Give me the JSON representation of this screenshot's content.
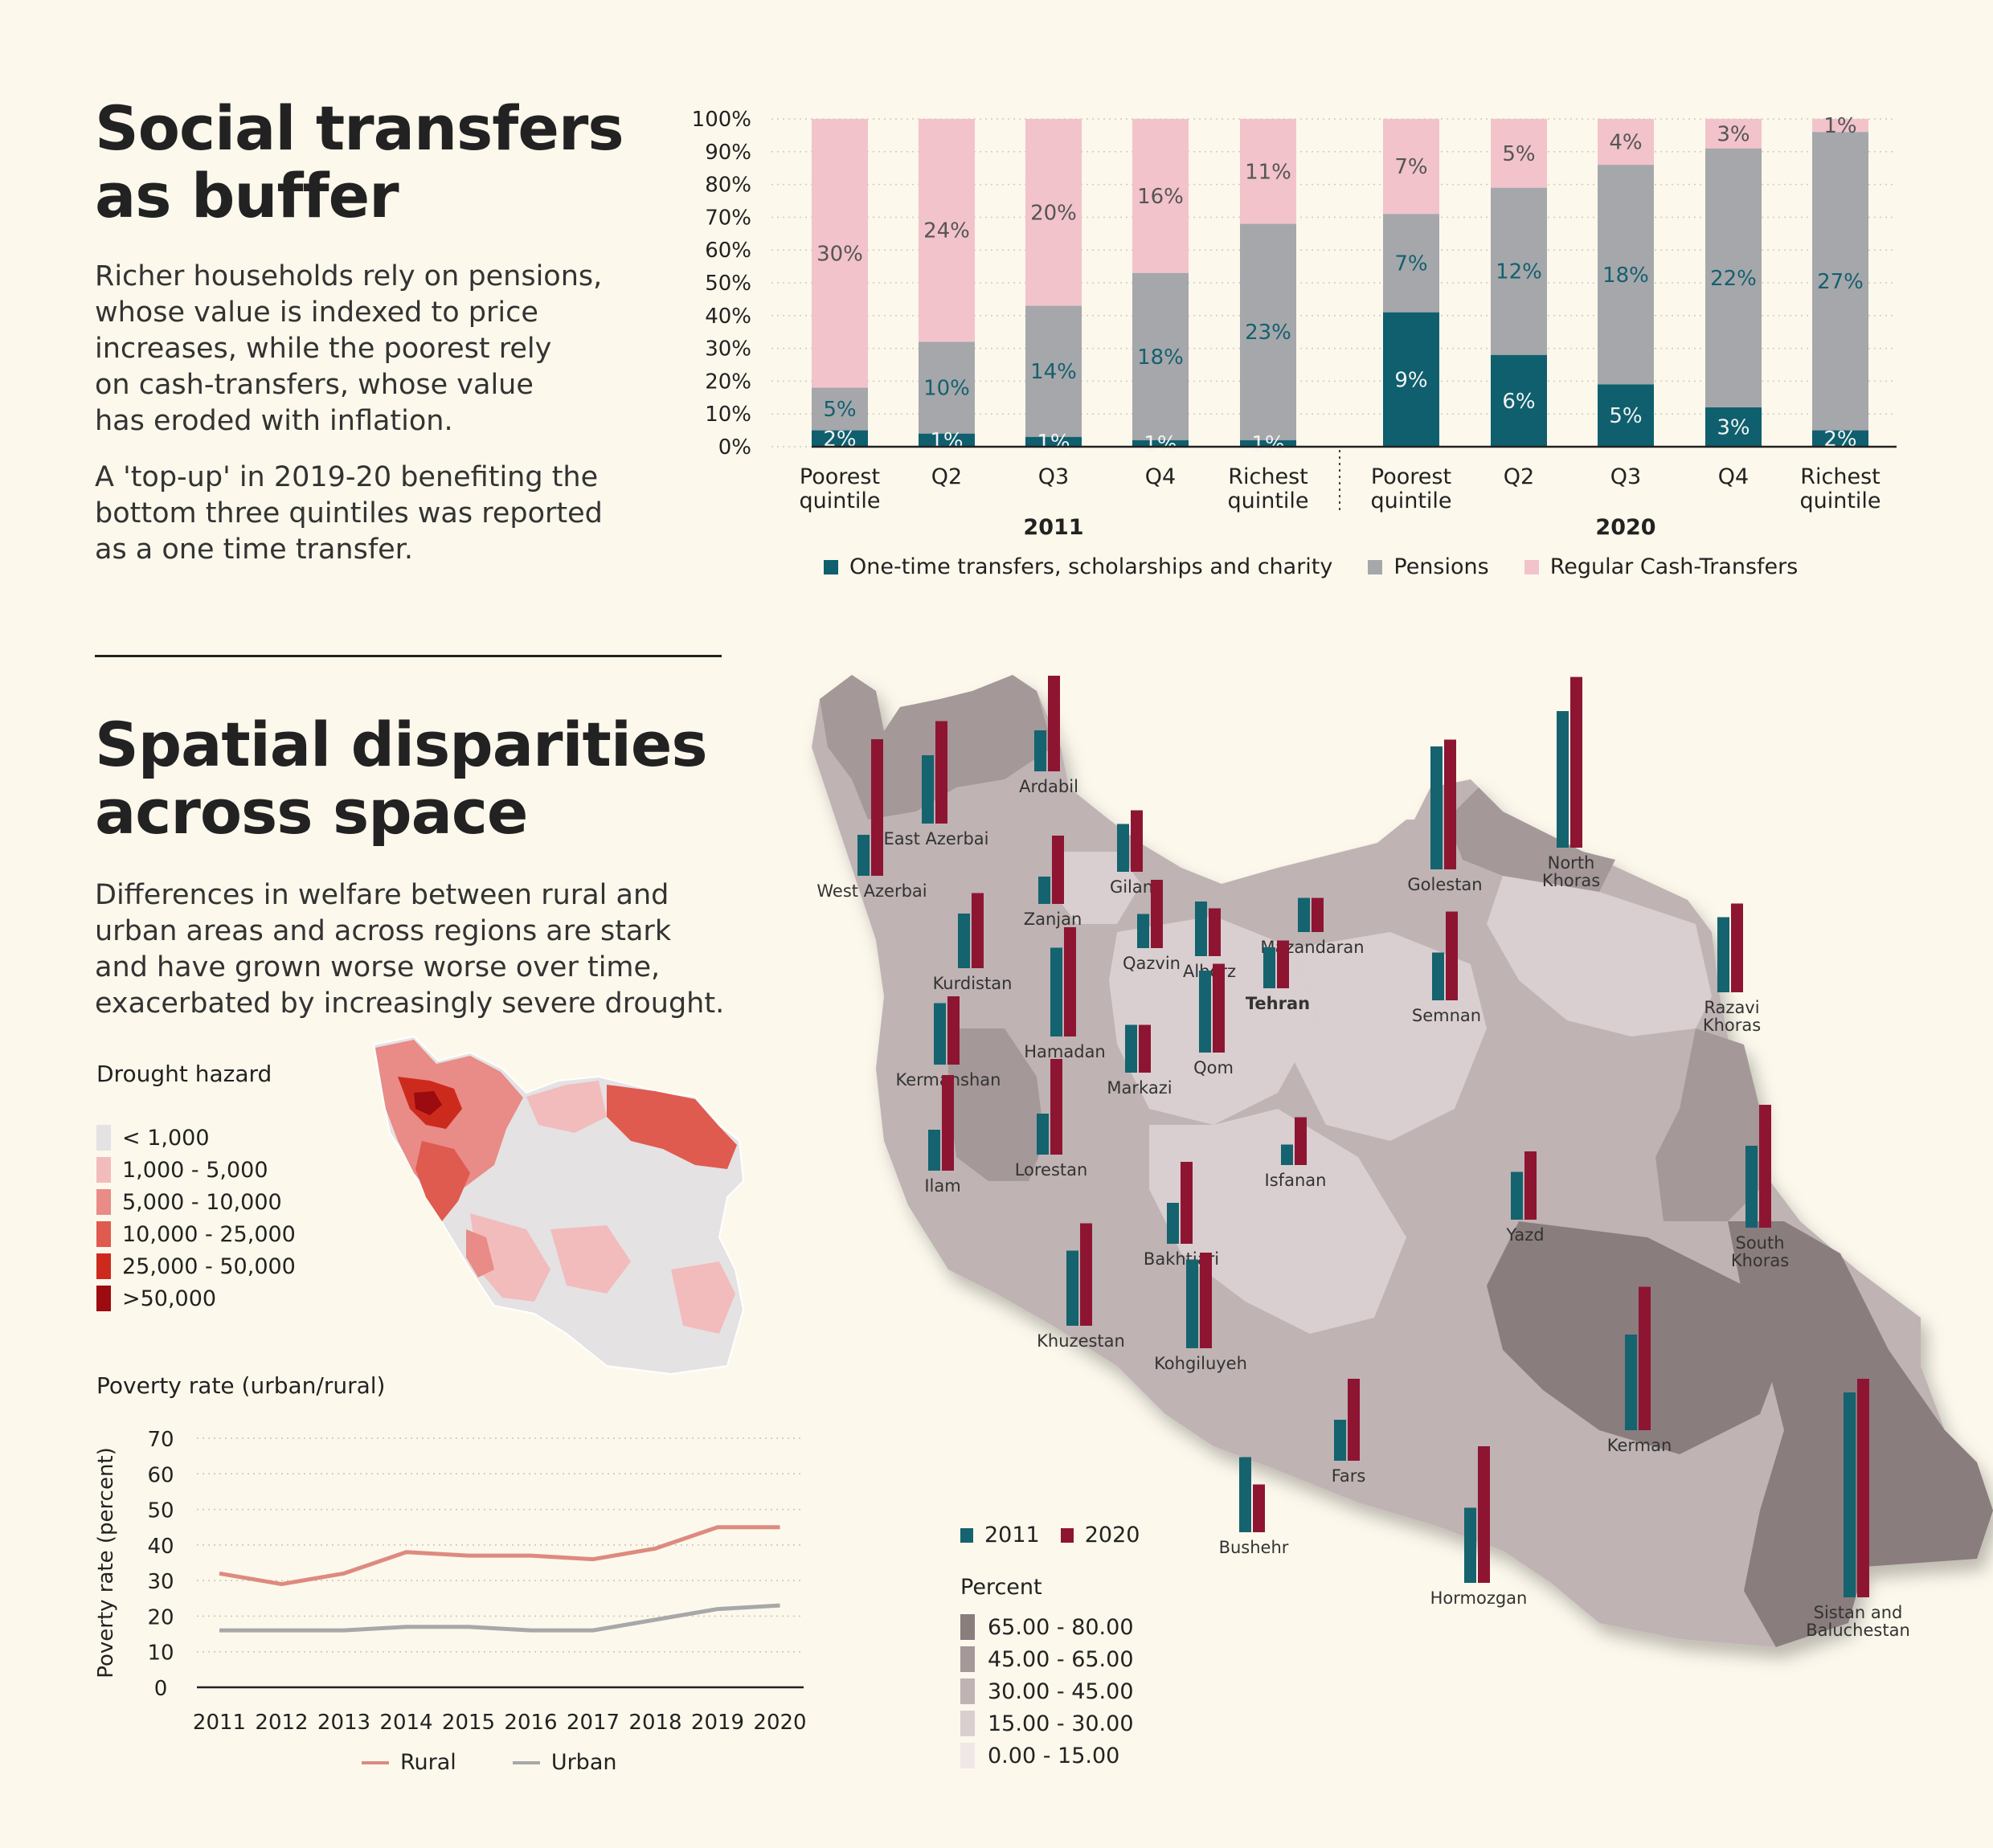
{
  "section1": {
    "title_line1": "Social transfers",
    "title_line2": "as buffer",
    "para1": [
      "Richer households rely on pensions,",
      "whose value is indexed to price",
      "increases, while the poorest rely",
      "on cash-transfers, whose value",
      "has eroded with inflation."
    ],
    "para2": [
      "A 'top-up' in 2019-20 benefiting the",
      "bottom three quintiles was reported",
      "as a one time transfer."
    ]
  },
  "section2": {
    "title_line1": "Spatial disparities",
    "title_line2": "across space",
    "para": [
      "Differences in welfare between rural and",
      "urban areas and across regions are stark",
      "and have grown worse worse over time,",
      "exacerbated by increasingly severe drought."
    ]
  },
  "colors": {
    "onetime": "#0f5f6e",
    "pensions": "#a5a7ab",
    "cash": "#f2c3cb",
    "rural": "#de8a7f",
    "urban": "#a8a8a8",
    "bar2011": "#14636f",
    "bar2020": "#8e1532"
  },
  "chart_data": [
    {
      "type": "bar",
      "stacked": true,
      "groups": [
        "2011",
        "2020"
      ],
      "categories": [
        "Poorest quintile",
        "Q2",
        "Q3",
        "Q4",
        "Richest quintile",
        "Poorest quintile",
        "Q2",
        "Q3",
        "Q4",
        "Richest quintile"
      ],
      "series": [
        {
          "name": "One-time transfers, scholarships and charity",
          "values": [
            2,
            1,
            1,
            1,
            1,
            9,
            6,
            5,
            3,
            2
          ],
          "labels": [
            "2%",
            "1%",
            "1%",
            "1%",
            "1%",
            "9%",
            "6%",
            "5%",
            "3%",
            "2%"
          ]
        },
        {
          "name": "Pensions",
          "values": [
            5,
            10,
            14,
            18,
            23,
            7,
            12,
            18,
            22,
            27
          ],
          "labels": [
            "5%",
            "10%",
            "14%",
            "18%",
            "23%",
            "7%",
            "12%",
            "18%",
            "22%",
            "27%"
          ]
        },
        {
          "name": "Regular Cash-Transfers",
          "values": [
            30,
            24,
            20,
            16,
            11,
            7,
            5,
            4,
            3,
            1
          ],
          "labels": [
            "30%",
            "24%",
            "20%",
            "16%",
            "11%",
            "7%",
            "5%",
            "4%",
            "3%",
            "1%"
          ]
        }
      ],
      "share_top": [
        18,
        32,
        43,
        53,
        68,
        71,
        79,
        86,
        91,
        96
      ],
      "share_onetime": [
        5,
        4,
        3,
        2,
        2,
        41,
        28,
        19,
        12,
        5
      ],
      "y_ticks": [
        "0%",
        "10%",
        "20%",
        "30%",
        "40%",
        "50%",
        "60%",
        "70%",
        "80%",
        "90%",
        "100%"
      ],
      "ylim": [
        0,
        100
      ],
      "legend": "bottom"
    },
    {
      "type": "line",
      "title": "Poverty rate (urban/rural)",
      "ylabel": "Poverty rate (percent)",
      "x": [
        "2011",
        "2012",
        "2013",
        "2014",
        "2015",
        "2016",
        "2017",
        "2018",
        "2019",
        "2020"
      ],
      "y_ticks": [
        "0",
        "10",
        "20",
        "30",
        "40",
        "50",
        "60",
        "70"
      ],
      "ylim": [
        0,
        70
      ],
      "series": [
        {
          "name": "Rural",
          "values": [
            32,
            29,
            32,
            38,
            37,
            37,
            36,
            39,
            45,
            45
          ]
        },
        {
          "name": "Urban",
          "values": [
            16,
            16,
            16,
            17,
            17,
            16,
            16,
            19,
            22,
            23
          ]
        }
      ],
      "legend": "bottom"
    }
  ],
  "drought": {
    "title": "Drought hazard",
    "classes": [
      {
        "label": "< 1,000",
        "color": "#e4e2e3"
      },
      {
        "label": "1,000 - 5,000",
        "color": "#f2bcbc"
      },
      {
        "label": "5,000 - 10,000",
        "color": "#e98b87"
      },
      {
        "label": "10,000 - 25,000",
        "color": "#df5a4f"
      },
      {
        "label": "25,000 - 50,000",
        "color": "#cd2a1e"
      },
      {
        "label": ">50,000",
        "color": "#9b0b0f"
      }
    ]
  },
  "province_map": {
    "legend_years": [
      "2011",
      "2020"
    ],
    "legend_title": "Percent",
    "classes": [
      {
        "label": "65.00 - 80.00",
        "color": "#8a7d7e"
      },
      {
        "label": "45.00 - 65.00",
        "color": "#a49899"
      },
      {
        "label": "30.00 - 45.00",
        "color": "#bfb3b4"
      },
      {
        "label": "15.00 - 30.00",
        "color": "#d9cfd0"
      },
      {
        "label": "0.00 - 15.00",
        "color": "#efe7e7"
      }
    ],
    "provinces": [
      {
        "name": "Ardabil",
        "v2011": 6,
        "v2020": 14
      },
      {
        "name": "East Azerbai",
        "v2011": 10,
        "v2020": 15
      },
      {
        "name": "West Azerbai",
        "v2011": 6,
        "v2020": 20
      },
      {
        "name": "Zanjan",
        "v2011": 4,
        "v2020": 10
      },
      {
        "name": "Gilan",
        "v2011": 7,
        "v2020": 9
      },
      {
        "name": "Golestan",
        "v2011": 18,
        "v2020": 19
      },
      {
        "name": "North Khoras",
        "v2011": 20,
        "v2020": 25
      },
      {
        "name": "Kurdistan",
        "v2011": 8,
        "v2020": 11
      },
      {
        "name": "Qazvin",
        "v2011": 5,
        "v2020": 10
      },
      {
        "name": "Alborz",
        "v2011": 8,
        "v2020": 7
      },
      {
        "name": "Mazandaran",
        "v2011": 5,
        "v2020": 5
      },
      {
        "name": "Tehran",
        "v2011": 6,
        "v2020": 7
      },
      {
        "name": "Semnan",
        "v2011": 7,
        "v2020": 13
      },
      {
        "name": "Razavi Khoras",
        "v2011": 11,
        "v2020": 13
      },
      {
        "name": "Hamadan",
        "v2011": 13,
        "v2020": 16
      },
      {
        "name": "Kermanshan",
        "v2011": 9,
        "v2020": 10
      },
      {
        "name": "Markazi",
        "v2011": 7,
        "v2020": 7
      },
      {
        "name": "Qom",
        "v2011": 12,
        "v2020": 13
      },
      {
        "name": "Ilam",
        "v2011": 6,
        "v2020": 14
      },
      {
        "name": "Lorestan",
        "v2011": 6,
        "v2020": 14
      },
      {
        "name": "Isfanan",
        "v2011": 3,
        "v2020": 7
      },
      {
        "name": "Yazd",
        "v2011": 7,
        "v2020": 10
      },
      {
        "name": "South Khoras",
        "v2011": 12,
        "v2020": 18
      },
      {
        "name": "Bakhtiari",
        "v2011": 6,
        "v2020": 12
      },
      {
        "name": "Khuzestan",
        "v2011": 11,
        "v2020": 15
      },
      {
        "name": "Kohgiluyeh",
        "v2011": 13,
        "v2020": 14
      },
      {
        "name": "Kerman",
        "v2011": 14,
        "v2020": 21
      },
      {
        "name": "Fars",
        "v2011": 6,
        "v2020": 12
      },
      {
        "name": "Bushehr",
        "v2011": 11,
        "v2020": 7
      },
      {
        "name": "Hormozgan",
        "v2011": 11,
        "v2020": 20
      },
      {
        "name": "Sistan and Baluchestan",
        "v2011": 30,
        "v2020": 32
      }
    ]
  }
}
